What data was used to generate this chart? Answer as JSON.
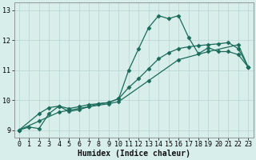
{
  "xlabel": "Humidex (Indice chaleur)",
  "bg_color": "#d8eeeb",
  "grid_color": "#b8d4d0",
  "line_color": "#1a6b5a",
  "xlim": [
    -0.5,
    23.5
  ],
  "ylim": [
    8.75,
    13.25
  ],
  "xticks": [
    0,
    1,
    2,
    3,
    4,
    5,
    6,
    7,
    8,
    9,
    10,
    11,
    12,
    13,
    14,
    15,
    16,
    17,
    18,
    19,
    20,
    21,
    22,
    23
  ],
  "yticks": [
    9,
    10,
    11,
    12,
    13
  ],
  "line1_x": [
    0,
    1,
    2,
    3,
    4,
    5,
    6,
    7,
    8,
    9,
    10,
    11,
    12,
    13,
    14,
    15,
    16,
    17,
    18,
    19,
    20,
    21,
    22,
    23
  ],
  "line1_y": [
    9.0,
    9.1,
    9.05,
    9.55,
    9.8,
    9.62,
    9.68,
    9.78,
    9.88,
    9.92,
    10.05,
    11.0,
    11.72,
    12.42,
    12.82,
    12.72,
    12.82,
    12.1,
    11.55,
    11.75,
    11.62,
    11.62,
    11.52,
    11.1
  ],
  "line2_x": [
    0,
    2,
    3,
    4,
    5,
    6,
    7,
    8,
    9,
    10,
    11,
    12,
    13,
    14,
    15,
    16,
    17,
    18,
    19,
    20,
    21,
    22,
    23
  ],
  "line2_y": [
    9.0,
    9.55,
    9.75,
    9.8,
    9.72,
    9.78,
    9.85,
    9.88,
    9.92,
    10.05,
    10.42,
    10.72,
    11.05,
    11.38,
    11.58,
    11.72,
    11.78,
    11.82,
    11.85,
    11.88,
    11.92,
    11.72,
    11.1
  ],
  "line3_x": [
    0,
    2,
    4,
    7,
    9,
    10,
    13,
    16,
    19,
    22,
    23
  ],
  "line3_y": [
    9.0,
    9.3,
    9.6,
    9.78,
    9.88,
    9.95,
    10.65,
    11.35,
    11.62,
    11.85,
    11.1
  ],
  "marker": "D",
  "markersize": 2.5,
  "linewidth": 0.9,
  "tick_fontsize": 6,
  "xlabel_fontsize": 7
}
